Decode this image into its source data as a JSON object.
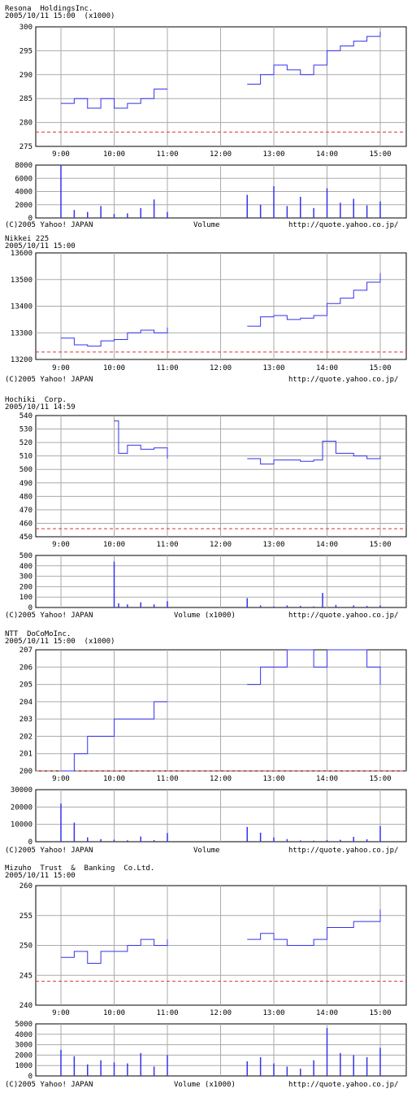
{
  "colors": {
    "price": "#3333ee",
    "volume": "#3333ee",
    "grid": "#aaaaaa",
    "frame": "#000000",
    "reference": "#dd3333"
  },
  "time_labels": [
    "9:00",
    "10:00",
    "11:00",
    "12:00",
    "13:00",
    "14:00",
    "15:00"
  ],
  "charts": [
    {
      "id": "resona",
      "title": "Resona  HoldingsInc.",
      "subtitle": "2005/10/11 15:00  (x1000)",
      "y_ticks": [
        "300",
        "295",
        "290",
        "285",
        "280",
        "275"
      ],
      "reference_value": 278,
      "volume_ticks": [
        "8000",
        "6000",
        "4000",
        "2000",
        "0"
      ],
      "footer": {
        "left": "(C)2005 Yahoo! JAPAN",
        "center": "Volume",
        "right": "http://quote.yahoo.co.jp/"
      }
    },
    {
      "id": "nikkei",
      "title": "Nikkei 225",
      "subtitle": "2005/10/11 15:00",
      "y_ticks": [
        "13600",
        "13500",
        "13400",
        "13300",
        "13200"
      ],
      "reference_value": 13228,
      "volume_ticks": [],
      "footer": {
        "left": "(C)2005 Yahoo! JAPAN",
        "center": "",
        "right": "http://quote.yahoo.co.jp/"
      }
    },
    {
      "id": "hochiki",
      "title": "Hochiki  Corp.",
      "subtitle": "2005/10/11 14:59",
      "y_ticks": [
        "540",
        "530",
        "520",
        "510",
        "500",
        "490",
        "480",
        "470",
        "460",
        "450"
      ],
      "reference_value": 456,
      "volume_ticks": [
        "500",
        "400",
        "300",
        "200",
        "100",
        "0"
      ],
      "footer": {
        "left": "(C)2005 Yahoo! JAPAN",
        "center": "Volume (x1000)",
        "right": "http://quote.yahoo.co.jp/"
      }
    },
    {
      "id": "ntt",
      "title": "NTT  DoCoMoInc.",
      "subtitle": "2005/10/11 15:00  (x1000)",
      "y_ticks": [
        "207",
        "206",
        "205",
        "204",
        "203",
        "202",
        "201",
        "200"
      ],
      "reference_value": 200,
      "volume_ticks": [
        "30000",
        "20000",
        "10000",
        "0"
      ],
      "footer": {
        "left": "(C)2005 Yahoo! JAPAN",
        "center": "Volume",
        "right": "http://quote.yahoo.co.jp/"
      }
    },
    {
      "id": "mizuho",
      "title": "Mizuho  Trust  &  Banking  Co.Ltd.",
      "subtitle": "2005/10/11 15:00",
      "y_ticks": [
        "260",
        "255",
        "250",
        "245",
        "240"
      ],
      "reference_value": 244,
      "volume_ticks": [
        "5000",
        "4000",
        "3000",
        "2000",
        "1000",
        "0"
      ],
      "footer": {
        "left": "(C)2005 Yahoo! JAPAN",
        "center": "Volume (x1000)",
        "right": "http://quote.yahoo.co.jp/"
      }
    }
  ],
  "chart_data": [
    {
      "type": "line",
      "title": "Resona  HoldingsInc.",
      "ylim": [
        275,
        300
      ],
      "x": [
        "9:00",
        "9:15",
        "9:30",
        "9:45",
        "10:00",
        "10:15",
        "10:30",
        "10:45",
        "11:00",
        "12:30",
        "12:45",
        "13:00",
        "13:15",
        "13:30",
        "13:45",
        "14:00",
        "14:15",
        "14:30",
        "14:45",
        "15:00"
      ],
      "series": [
        {
          "values": [
            284,
            285,
            283,
            285,
            283,
            284,
            285,
            287,
            287,
            288,
            290,
            292,
            291,
            290,
            292,
            295,
            296,
            297,
            298,
            299
          ]
        }
      ],
      "volume": {
        "ylim": [
          0,
          8000
        ],
        "values": [
          8000,
          1200,
          900,
          1800,
          600,
          700,
          1500,
          2800,
          900,
          3500,
          2000,
          4800,
          1800,
          3200,
          1500,
          4500,
          2300,
          2900,
          1900,
          2500
        ]
      }
    },
    {
      "type": "line",
      "title": "Nikkei 225",
      "ylim": [
        13200,
        13600
      ],
      "x": [
        "9:00",
        "9:15",
        "9:30",
        "9:45",
        "10:00",
        "10:15",
        "10:30",
        "10:45",
        "11:00",
        "12:30",
        "12:45",
        "13:00",
        "13:15",
        "13:30",
        "13:45",
        "14:00",
        "14:15",
        "14:30",
        "14:45",
        "15:00"
      ],
      "series": [
        {
          "values": [
            13280,
            13255,
            13250,
            13270,
            13275,
            13300,
            13310,
            13300,
            13320,
            13325,
            13360,
            13365,
            13350,
            13355,
            13365,
            13410,
            13430,
            13460,
            13490,
            13525
          ]
        }
      ]
    },
    {
      "type": "line",
      "title": "Hochiki  Corp.",
      "ylim": [
        450,
        540
      ],
      "x": [
        "10:00",
        "10:05",
        "10:15",
        "10:30",
        "10:45",
        "11:00",
        "12:30",
        "12:45",
        "13:00",
        "13:15",
        "13:30",
        "13:45",
        "13:55",
        "14:10",
        "14:30",
        "14:45",
        "15:00"
      ],
      "series": [
        {
          "values": [
            536,
            512,
            518,
            515,
            516,
            508,
            508,
            504,
            507,
            507,
            506,
            507,
            521,
            512,
            510,
            508,
            510
          ]
        }
      ],
      "volume": {
        "ylim": [
          0,
          500
        ],
        "values": [
          440,
          40,
          30,
          50,
          30,
          60,
          90,
          20,
          10,
          20,
          15,
          10,
          140,
          25,
          20,
          15,
          20
        ]
      }
    },
    {
      "type": "line",
      "title": "NTT  DoCoMoInc.",
      "ylim": [
        200,
        207
      ],
      "x": [
        "9:00",
        "9:15",
        "9:30",
        "9:45",
        "10:00",
        "10:15",
        "10:30",
        "10:45",
        "11:00",
        "12:30",
        "12:45",
        "13:00",
        "13:15",
        "13:30",
        "13:45",
        "14:00",
        "14:15",
        "14:30",
        "14:45",
        "15:00"
      ],
      "series": [
        {
          "values": [
            200,
            201,
            202,
            202,
            203,
            203,
            203,
            204,
            204,
            205,
            206,
            206,
            207,
            207,
            206,
            207,
            207,
            207,
            206,
            205
          ]
        }
      ],
      "volume": {
        "ylim": [
          0,
          30000
        ],
        "values": [
          22000,
          11000,
          2500,
          1500,
          1200,
          800,
          3000,
          900,
          5000,
          8500,
          5200,
          2500,
          1500,
          700,
          600,
          900,
          1100,
          2800,
          1400,
          9000
        ]
      }
    },
    {
      "type": "line",
      "title": "Mizuho  Trust  &  Banking  Co.Ltd.",
      "ylim": [
        240,
        260
      ],
      "x": [
        "9:00",
        "9:15",
        "9:30",
        "9:45",
        "10:00",
        "10:15",
        "10:30",
        "10:45",
        "11:00",
        "12:30",
        "12:45",
        "13:00",
        "13:15",
        "13:30",
        "13:45",
        "14:00",
        "14:15",
        "14:30",
        "14:45",
        "15:00"
      ],
      "series": [
        {
          "values": [
            248,
            249,
            247,
            249,
            249,
            250,
            251,
            250,
            251,
            251,
            252,
            251,
            250,
            250,
            251,
            253,
            253,
            254,
            254,
            256
          ]
        }
      ],
      "volume": {
        "ylim": [
          0,
          5000
        ],
        "values": [
          2500,
          1900,
          1100,
          1500,
          1300,
          1200,
          2200,
          900,
          2000,
          1400,
          1800,
          1200,
          900,
          700,
          1500,
          4600,
          2200,
          2000,
          1800,
          2700
        ]
      }
    }
  ]
}
